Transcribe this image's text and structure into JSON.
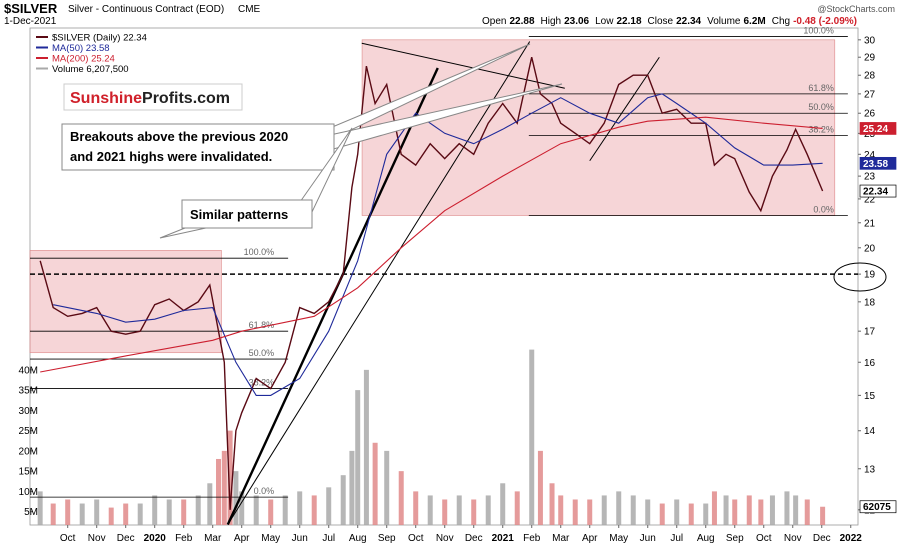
{
  "chart_data": {
    "type": "stock",
    "title": "$SILVER",
    "subtitle": "Silver - Continuous Contract (EOD)",
    "exchange": "CME",
    "date": "1-Dec-2021",
    "watermark": "@StockCharts.com",
    "ohlc": [
      {
        "label": "Open",
        "value": 22.88
      },
      {
        "label": "High",
        "value": 23.06
      },
      {
        "label": "Low",
        "value": 22.18
      },
      {
        "label": "Close",
        "value": 22.34
      },
      {
        "label": "Volume",
        "value": "6.2M"
      },
      {
        "label": "Chg",
        "value": "-0.48 (-2.09%)"
      }
    ],
    "log_scale": true,
    "xlim": [
      -0.3,
      28.25
    ],
    "ylim": [
      11.65,
      30.7
    ],
    "y2lim": [
      1700000,
      124400000
    ],
    "xticks": [
      {
        "value": 1,
        "label": "Oct"
      },
      {
        "value": 2,
        "label": "Nov"
      },
      {
        "value": 3,
        "label": "Dec"
      },
      {
        "value": 4,
        "label": "2020"
      },
      {
        "value": 5,
        "label": "Feb"
      },
      {
        "value": 6,
        "label": "Mar"
      },
      {
        "value": 7,
        "label": "Apr"
      },
      {
        "value": 8,
        "label": "May"
      },
      {
        "value": 9,
        "label": "Jun"
      },
      {
        "value": 10,
        "label": "Jul"
      },
      {
        "value": 11,
        "label": "Aug"
      },
      {
        "value": 12,
        "label": "Sep"
      },
      {
        "value": 13,
        "label": "Oct"
      },
      {
        "value": 14,
        "label": "Nov"
      },
      {
        "value": 15,
        "label": "Dec"
      },
      {
        "value": 16,
        "label": "2021"
      },
      {
        "value": 17,
        "label": "Feb"
      },
      {
        "value": 18,
        "label": "Mar"
      },
      {
        "value": 19,
        "label": "Apr"
      },
      {
        "value": 20,
        "label": "May"
      },
      {
        "value": 21,
        "label": "Jun"
      },
      {
        "value": 22,
        "label": "Jul"
      },
      {
        "value": 23,
        "label": "Aug"
      },
      {
        "value": 24,
        "label": "Sep"
      },
      {
        "value": 25,
        "label": "Oct"
      },
      {
        "value": 26,
        "label": "Nov"
      },
      {
        "value": 27,
        "label": "Dec"
      },
      {
        "value": 28,
        "label": "2022"
      }
    ],
    "yticks": [
      12,
      13,
      14,
      15,
      16,
      17,
      18,
      19,
      20,
      21,
      22,
      23,
      24,
      25,
      26,
      27,
      28,
      29,
      30
    ],
    "y2ticks": [
      {
        "value": 5000000,
        "label": "5M"
      },
      {
        "value": 10000000,
        "label": "10M"
      },
      {
        "value": 15000000,
        "label": "15M"
      },
      {
        "value": 20000000,
        "label": "20M"
      },
      {
        "value": 25000000,
        "label": "25M"
      },
      {
        "value": 30000000,
        "label": "30M"
      },
      {
        "value": 35000000,
        "label": "35M"
      },
      {
        "value": 40000000,
        "label": "40M"
      }
    ],
    "series": [
      {
        "name": "$SILVER (Daily) 22.34",
        "color": "#5a0a14",
        "kind": "price",
        "x": [
          0.05,
          0.5,
          1,
          1.5,
          2,
          2.5,
          3,
          3.5,
          4,
          4.5,
          5,
          5.5,
          5.9,
          6.2,
          6.4,
          6.6,
          6.8,
          7,
          7.5,
          8,
          8.5,
          9,
          9.5,
          10,
          10.5,
          10.8,
          11,
          11.3,
          11.6,
          12,
          12.5,
          13,
          13.5,
          14,
          14.5,
          15,
          15.5,
          16,
          16.5,
          17,
          17.3,
          17.7,
          18,
          18.5,
          19,
          19.5,
          20,
          20.5,
          21,
          21.5,
          22,
          22.5,
          23,
          23.3,
          23.7,
          24,
          24.5,
          24.9,
          25.3,
          25.8,
          26.1,
          26.5,
          27.03
        ],
        "values": [
          19.5,
          17.8,
          17.5,
          17.6,
          17.8,
          17.0,
          16.9,
          17.0,
          17.9,
          18.1,
          17.7,
          18.0,
          18.6,
          17.0,
          16.0,
          12.0,
          14.0,
          14.5,
          15.5,
          15.2,
          16.0,
          17.8,
          17.6,
          18.0,
          19.0,
          22.5,
          24.0,
          28.5,
          26.5,
          27.5,
          24.0,
          23.5,
          24.5,
          23.8,
          24.5,
          24.0,
          25.5,
          26.5,
          25.5,
          29.0,
          27.0,
          26.5,
          25.5,
          25.0,
          24.5,
          25.5,
          27.5,
          28.0,
          28.0,
          26.0,
          26.2,
          25.5,
          25.5,
          23.5,
          24.0,
          23.8,
          22.3,
          21.5,
          23.0,
          24.2,
          25.2,
          24.0,
          22.34
        ]
      },
      {
        "name": "MA(50) 23.58",
        "color": "#1f2a9a",
        "kind": "line",
        "x": [
          0.5,
          2,
          3,
          4,
          5,
          6,
          6.8,
          7.5,
          8,
          9,
          10,
          11,
          12,
          13,
          14,
          15,
          16,
          17,
          18,
          19,
          20,
          21,
          21.5,
          22,
          23,
          24,
          25,
          26,
          27.03
        ],
        "values": [
          17.9,
          17.6,
          17.3,
          17.4,
          17.7,
          17.8,
          16.0,
          15.0,
          15.0,
          15.5,
          17,
          19.5,
          24,
          26,
          25,
          24.5,
          25.2,
          26.0,
          26.8,
          26.0,
          25.5,
          26.8,
          27.0,
          26.5,
          25.5,
          24.3,
          23.5,
          23.5,
          23.58
        ]
      },
      {
        "name": "MA(200) 25.24",
        "color": "#cc1f2f",
        "kind": "line",
        "x": [
          0.05,
          3,
          6,
          7,
          9.5,
          11,
          12.5,
          14,
          16,
          18,
          20,
          21,
          23,
          25,
          27.03
        ],
        "values": [
          15.7,
          16.2,
          16.7,
          17.0,
          17.5,
          18.5,
          20,
          21.5,
          23,
          24.5,
          25.3,
          25.6,
          25.8,
          25.5,
          25.24
        ]
      },
      {
        "name": "Volume 6,207,500",
        "axis": "y2",
        "kind": "volume",
        "color": "#a9a9a9",
        "down_color": "#e08a8a",
        "tag_label": "62075",
        "x": [
          0.05,
          0.5,
          1,
          1.5,
          2,
          2.5,
          3,
          3.5,
          4,
          4.5,
          5,
          5.5,
          5.9,
          6.2,
          6.4,
          6.6,
          6.8,
          7,
          7.5,
          8,
          8.5,
          9,
          9.5,
          10,
          10.5,
          10.8,
          11,
          11.3,
          11.6,
          12,
          12.5,
          13,
          13.5,
          14,
          14.5,
          15,
          15.5,
          16,
          16.5,
          17,
          17.3,
          17.7,
          18,
          18.5,
          19,
          19.5,
          20,
          20.5,
          21,
          21.5,
          22,
          22.5,
          23,
          23.3,
          23.7,
          24,
          24.5,
          24.9,
          25.3,
          25.8,
          26.1,
          26.5,
          27.03
        ],
        "values": [
          10000000,
          7000000,
          8000000,
          7000000,
          8000000,
          6000000,
          7000000,
          7000000,
          9000000,
          8000000,
          8000000,
          9000000,
          12000000,
          18000000,
          20000000,
          25000000,
          15000000,
          10000000,
          9000000,
          8000000,
          9000000,
          10000000,
          9000000,
          11000000,
          14000000,
          20000000,
          35000000,
          40000000,
          22000000,
          20000000,
          15000000,
          10000000,
          9000000,
          8000000,
          9000000,
          8000000,
          9000000,
          12000000,
          10000000,
          45000000,
          20000000,
          12000000,
          9000000,
          8000000,
          8000000,
          9000000,
          10000000,
          9000000,
          8000000,
          7000000,
          8000000,
          7000000,
          7000000,
          10000000,
          9000000,
          8000000,
          9000000,
          8000000,
          9000000,
          10000000,
          9000000,
          8000000,
          6207500
        ]
      }
    ],
    "zone_color": "#efb3b6",
    "zones": [
      {
        "x": [
          -0.3,
          6.3
        ],
        "y": [
          16.3,
          19.9
        ]
      },
      {
        "x": [
          11.15,
          27.45
        ],
        "y": [
          21.3,
          30.0
        ]
      }
    ],
    "fib_sets": [
      {
        "x": [
          -0.3,
          8.6
        ],
        "labels": [
          "100.0%",
          "61.8%",
          "50.0%",
          "38.2%",
          "0.0%"
        ],
        "levels": [
          19.6,
          17.0,
          16.1,
          15.2,
          12.3
        ]
      },
      {
        "x": [
          16.9,
          27.9
        ],
        "labels": [
          "100.0%",
          "61.8%",
          "50.0%",
          "38.2%",
          "0.0%"
        ],
        "levels": [
          30.2,
          27.0,
          26.0,
          24.9,
          21.3
        ]
      }
    ],
    "reference_line": 19,
    "trendlines": [
      {
        "x": [
          6.52,
          13.76
        ],
        "y": [
          11.66,
          28.4
        ],
        "style": "heavy"
      },
      {
        "x": [
          6.52,
          16.93
        ],
        "y": [
          11.66,
          29.9
        ],
        "style": "thin"
      },
      {
        "x": [
          11.14,
          18.14
        ],
        "y": [
          29.8,
          27.3
        ],
        "style": "thin"
      },
      {
        "x": [
          19.0,
          21.4
        ],
        "y": [
          23.7,
          29.0
        ],
        "style": "thin"
      }
    ],
    "logo": [
      "Sunshine",
      "Profits.com"
    ],
    "callouts": [
      [
        "Breakouts above the previous 2020",
        "and 2021 highs were invalidated."
      ],
      [
        "Similar patterns"
      ]
    ]
  }
}
